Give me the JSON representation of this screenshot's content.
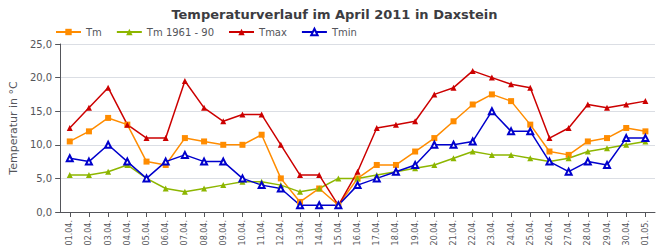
{
  "chart_data": {
    "type": "line",
    "title": "Temperaturverlauf im April 2011 in Daxstein",
    "ylabel": "Temperatur in °C",
    "categories": [
      "01.04.",
      "02.04.",
      "03.04.",
      "04.04.",
      "05.04.",
      "06.04.",
      "07.04.",
      "08.04.",
      "09.04.",
      "10.04.",
      "11.04.",
      "12.04.",
      "13.04.",
      "14.04.",
      "15.04.",
      "16.04.",
      "17.04.",
      "18.04.",
      "19.04.",
      "20.04.",
      "21.04.",
      "22.04.",
      "23.04.",
      "24.04.",
      "25.04.",
      "26.04.",
      "27.04.",
      "28.04.",
      "29.04.",
      "30.04.",
      "01.05."
    ],
    "series": [
      {
        "name": "Tm",
        "color": "#ff8c00",
        "marker": "square",
        "values": [
          10.5,
          12.0,
          14.0,
          13.0,
          7.5,
          7.0,
          11.0,
          10.5,
          10.0,
          10.0,
          11.5,
          5.0,
          1.5,
          3.5,
          1.0,
          5.0,
          7.0,
          7.0,
          9.0,
          11.0,
          13.5,
          16.0,
          17.5,
          16.5,
          13.0,
          9.0,
          8.5,
          10.5,
          11.0,
          12.5,
          12.0
        ]
      },
      {
        "name": "Tm 1961 - 90",
        "color": "#8db600",
        "marker": "triangle",
        "values": [
          5.5,
          5.5,
          6.0,
          7.0,
          5.0,
          3.5,
          3.0,
          3.5,
          4.0,
          4.5,
          4.5,
          4.0,
          3.0,
          3.5,
          5.0,
          5.0,
          5.5,
          6.0,
          6.5,
          7.0,
          8.0,
          9.0,
          8.5,
          8.5,
          8.0,
          7.5,
          8.0,
          9.0,
          9.5,
          10.0,
          10.5
        ]
      },
      {
        "name": "Tmax",
        "color": "#cc0000",
        "marker": "triangle",
        "values": [
          12.5,
          15.5,
          18.5,
          13.0,
          11.0,
          11.0,
          19.5,
          15.5,
          13.5,
          14.5,
          14.5,
          10.0,
          5.5,
          5.5,
          1.0,
          6.0,
          12.5,
          13.0,
          13.5,
          17.5,
          18.5,
          21.0,
          20.0,
          19.0,
          18.5,
          11.0,
          12.5,
          16.0,
          15.5,
          16.0,
          16.5
        ]
      },
      {
        "name": "Tmin",
        "color": "#0000cc",
        "marker": "open_triangle",
        "values": [
          8.0,
          7.5,
          10.0,
          7.5,
          5.0,
          7.5,
          8.5,
          7.5,
          7.5,
          5.0,
          4.0,
          3.5,
          1.0,
          1.0,
          1.0,
          4.0,
          5.0,
          6.0,
          7.0,
          10.0,
          10.0,
          10.5,
          15.0,
          12.0,
          12.0,
          7.5,
          6.0,
          7.5,
          7.0,
          11.0,
          11.0
        ]
      }
    ],
    "ylim": [
      0.0,
      25.0
    ],
    "yticks": [
      {
        "value": 0.0,
        "label": "0,0"
      },
      {
        "value": 5.0,
        "label": "5,0"
      },
      {
        "value": 10.0,
        "label": "10,0"
      },
      {
        "value": 15.0,
        "label": "15,0"
      },
      {
        "value": 20.0,
        "label": "20,0"
      },
      {
        "value": 25.0,
        "label": "25,0"
      }
    ],
    "grid": true,
    "legend": "upper left"
  }
}
